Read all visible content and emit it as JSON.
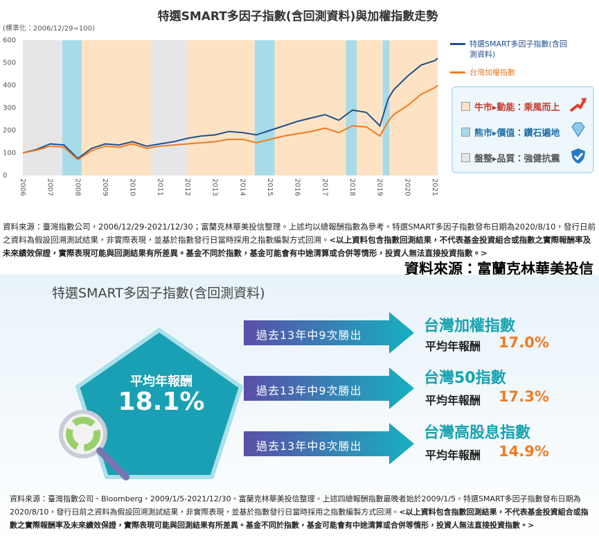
{
  "chart_data": {
    "type": "line",
    "title": "特選SMART多因子指數(含回測資料)與加權指數走勢",
    "y_label": "(標準化：2006/12/29=100)",
    "x": [
      2006,
      2006.5,
      2007,
      2007.5,
      2008,
      2008.5,
      2009,
      2009.5,
      2010,
      2010.5,
      2011,
      2011.5,
      2012,
      2012.5,
      2013,
      2013.5,
      2014,
      2014.5,
      2015,
      2015.5,
      2016,
      2016.5,
      2017,
      2017.5,
      2018,
      2018.5,
      2019,
      2019.3,
      2019.5,
      2020,
      2020.5,
      2021,
      2021.1
    ],
    "series": [
      {
        "name": "特選SMART多因子指數(含回測資料)",
        "color": "#1f4e8c",
        "values": [
          100,
          115,
          140,
          135,
          75,
          120,
          140,
          135,
          150,
          130,
          140,
          150,
          165,
          175,
          180,
          195,
          190,
          180,
          200,
          220,
          240,
          255,
          270,
          245,
          290,
          280,
          220,
          340,
          380,
          440,
          490,
          510,
          520
        ]
      },
      {
        "name": "台灣加權指數",
        "color": "#f07b22",
        "values": [
          100,
          112,
          130,
          125,
          70,
          110,
          130,
          125,
          140,
          120,
          130,
          135,
          140,
          145,
          150,
          160,
          160,
          145,
          160,
          175,
          185,
          195,
          210,
          190,
          220,
          215,
          175,
          240,
          270,
          310,
          360,
          390,
          400
        ]
      }
    ],
    "xlim": [
      2006,
      2021.1
    ],
    "ylim": [
      0,
      600
    ],
    "xticks": [
      2006,
      2007,
      2008,
      2009,
      2010,
      2011,
      2012,
      2013,
      2014,
      2015,
      2016,
      2017,
      2018,
      2019,
      2020,
      2021
    ],
    "yticks": [
      0,
      100,
      200,
      300,
      400,
      500,
      600
    ],
    "regions": [
      {
        "range": [
          2006,
          2007.44
        ],
        "color": "#e6e6e6"
      },
      {
        "range": [
          2007.44,
          2008.14
        ],
        "color": "#a8dbe8"
      },
      {
        "range": [
          2008.14,
          2010.66
        ],
        "color": "#fde3c3"
      },
      {
        "range": [
          2010.66,
          2011.97
        ],
        "color": "#e6e6e6"
      },
      {
        "range": [
          2011.97,
          2014.44
        ],
        "color": "#fde3c3"
      },
      {
        "range": [
          2014.44,
          2015.17
        ],
        "color": "#a8dbe8"
      },
      {
        "range": [
          2015.17,
          2017.76
        ],
        "color": "#fde3c3"
      },
      {
        "range": [
          2017.76,
          2018.16
        ],
        "color": "#a8dbe8"
      },
      {
        "range": [
          2018.16,
          2019.1
        ],
        "color": "#fde3c3"
      },
      {
        "range": [
          2019.1,
          2019.35
        ],
        "color": "#a8dbe8"
      },
      {
        "range": [
          2019.35,
          2021.1
        ],
        "color": "#fde3c3"
      }
    ],
    "regime_legend": [
      {
        "label": "牛市▸動能：乘風而上",
        "color": "#fde3c3"
      },
      {
        "label": "熊市▸價值：鑽石遍地",
        "color": "#a8dbe8"
      },
      {
        "label": "盤整▸品質：強健抗震",
        "color": "#e6e6e6"
      }
    ]
  },
  "source_top": {
    "text": "資料來源：臺灣指數公司，2006/12/29-2021/12/30；富蘭克林華美投信整理。上述均以總報酬指數為參考。特選SMART多因子指數發布日期為2020/8/10，發行日前之資料為假設回溯測試結果，非實際表現，並基於指數發行日當時採用之指數編製方式回溯。",
    "disclaimer": "<以上資料包含指數回測結果，不代表基金投資組合或指數之實際報酬率及未來績效保證，實際表現可能與回測結果有所差異。基金不同於指數，基金可能會有中途清算或合併等情形，投資人無法直接投資指數。>"
  },
  "credit": "資料來源：富蘭克林華美投信",
  "infographic": {
    "title": "特選SMART多因子指數(含回測資料)",
    "center": {
      "label": "平均年報酬",
      "value": "18.1%"
    },
    "rows": [
      {
        "arrow": "過去13年中9次勝出",
        "index": "台灣加權指數",
        "label": "平均年報酬",
        "value": "17.0%"
      },
      {
        "arrow": "過去13年中9次勝出",
        "index": "台灣50指數",
        "label": "平均年報酬",
        "value": "17.3%"
      },
      {
        "arrow": "過去13年中8次勝出",
        "index": "台灣高股息指數",
        "label": "平均年報酬",
        "value": "14.9%"
      }
    ]
  },
  "source_bottom": {
    "text": "資料來源：臺灣指數公司、Bloomberg，2009/1/5-2021/12/30。富蘭克林華美投信整理。上述四總報酬指數最晚者始於2009/1/5。特選SMART多因子指數發布日期為2020/8/10，發行日前之資料為假設回溯測試結果，非實際表現，並基於指數發行日當時採用之指數編製方式回溯。",
    "disclaimer": "<以上資料包含指數回測結果，不代表基金投資組合或指數之實際報酬率及未來績效保證，實際表現可能與回測結果有所差異。基金不同於指數，基金可能會有中途清算或合併等情形，投資人無法直接投資指數。>"
  }
}
